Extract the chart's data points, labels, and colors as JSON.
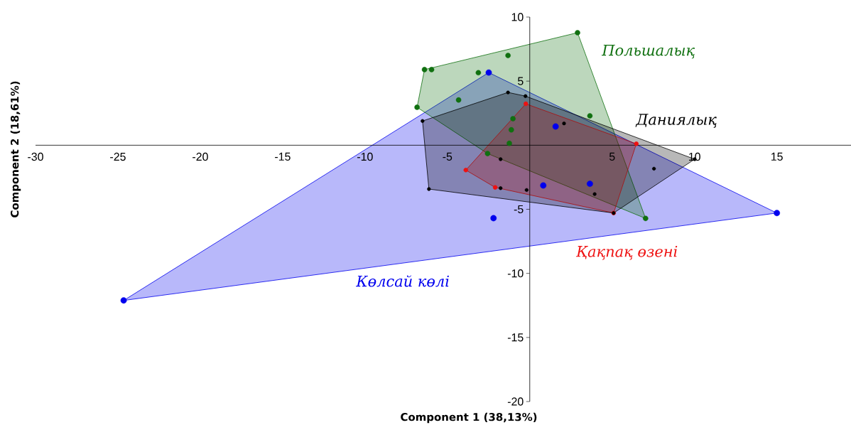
{
  "chart_data": {
    "type": "scatter",
    "xlabel": "Component 1 (38,13%)",
    "ylabel": "Component 2 (18,61%)",
    "xlim": [
      -30,
      19.5
    ],
    "ylim": [
      -20,
      10
    ],
    "xticks": [
      -30,
      -25,
      -20,
      -15,
      -10,
      -5,
      5,
      10,
      15
    ],
    "yticks": [
      -20,
      -15,
      -10,
      -5,
      5,
      10
    ],
    "marker": "circle",
    "grid": false,
    "legend": false,
    "series": [
      {
        "name": "Көлсай көлі",
        "color": "#0000ee",
        "x": [
          -2.49,
          1.57,
          0.82,
          3.65,
          -2.2,
          15.0,
          -24.65
        ],
        "values": [
          5.67,
          1.46,
          -3.14,
          -3.01,
          -5.69,
          -5.29,
          -12.11
        ]
      },
      {
        "name": "Польшалық",
        "color": "#107010",
        "x": [
          2.9,
          -6.39,
          -5.96,
          -1.32,
          -3.12,
          -4.32,
          -6.84,
          -1.02,
          -1.12,
          -1.24,
          -2.56,
          3.65,
          7.03
        ],
        "values": [
          8.78,
          5.9,
          5.9,
          7.0,
          5.66,
          3.53,
          2.96,
          2.07,
          1.2,
          0.15,
          -0.65,
          2.29,
          -5.71
        ]
      },
      {
        "name": "Қақпақ өзені",
        "color": "#ee1111",
        "x": [
          -0.24,
          -2.1,
          -3.88,
          6.47,
          5.09
        ],
        "values": [
          3.23,
          -3.29,
          -1.94,
          0.11,
          -5.29
        ]
      },
      {
        "name": "Даниялық",
        "color": "#000000",
        "x": [
          -1.32,
          -0.26,
          -6.51,
          2.08,
          10.01,
          7.54,
          -1.77,
          -1.77,
          -0.19,
          3.94,
          5.09,
          -6.12
        ],
        "values": [
          4.12,
          3.83,
          1.89,
          1.7,
          -1.09,
          -1.83,
          -1.09,
          -3.35,
          -3.49,
          -3.81,
          -5.29,
          -3.42
        ]
      }
    ]
  }
}
